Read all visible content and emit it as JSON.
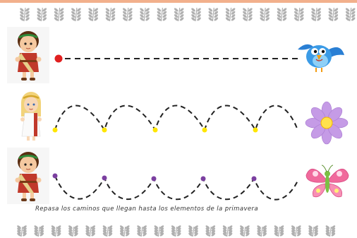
{
  "instruction_text": "Repasa los caminos que llegan hasta los elementos de la primavera",
  "icons": {
    "row1_start": "roman-boy-icon",
    "row1_end": "blue-bird-icon",
    "row2_start": "roman-girl-icon",
    "row2_end": "purple-flower-icon",
    "row3_start": "roman-boy-icon",
    "row3_end": "pink-butterfly-icon",
    "decoration": "laurel-sprig-icon"
  },
  "colors": {
    "top_bar": "#f2b08c",
    "laurel": "#b0b0b0",
    "path_stroke": "#222222",
    "row1_dot": "#e02020",
    "row2_dot": "#ffe600",
    "row3_dot": "#7b3fa0"
  }
}
